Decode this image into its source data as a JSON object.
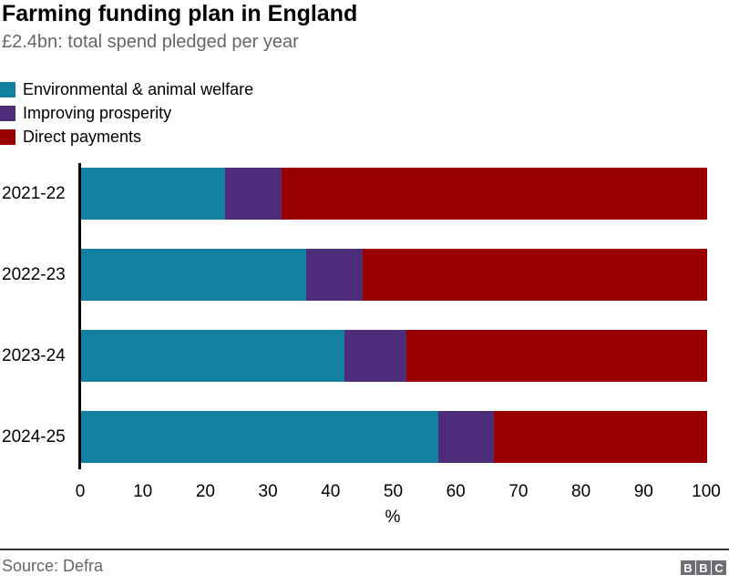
{
  "header": {
    "title": "Farming funding plan in England",
    "subtitle": "£2.4bn: total spend pledged per year"
  },
  "colors": {
    "environmental_teal": "#1380A1",
    "prosperity_purple": "#4D2D7A",
    "direct_payments_red": "#9A0000",
    "axis_black": "#000000",
    "subtitle_gray": "#666666",
    "footer_line_gray": "#333333",
    "bbc_logo_gray": "#6E6E73"
  },
  "chart_data": {
    "type": "bar",
    "orientation": "horizontal",
    "stacked": true,
    "title": "Farming funding plan in England",
    "subtitle": "£2.4bn: total spend pledged per year",
    "categories": [
      "2021-22",
      "2022-23",
      "2023-24",
      "2024-25"
    ],
    "series": [
      {
        "name": "Environmental & animal welfare",
        "color": "#1380A1",
        "values": [
          23,
          36,
          42,
          57
        ]
      },
      {
        "name": "Improving prosperity",
        "color": "#4D2D7A",
        "values": [
          9,
          9,
          10,
          9
        ]
      },
      {
        "name": "Direct payments",
        "color": "#9A0000",
        "values": [
          68,
          55,
          48,
          34
        ]
      }
    ],
    "xlabel": "%",
    "xlim": [
      0,
      100
    ],
    "xticks": [
      0,
      10,
      20,
      30,
      40,
      50,
      60,
      70,
      80,
      90,
      100
    ],
    "legend_position": "top-left",
    "grid": false
  },
  "footer": {
    "source": "Source: Defra",
    "logo_letters": [
      "B",
      "B",
      "C"
    ]
  }
}
